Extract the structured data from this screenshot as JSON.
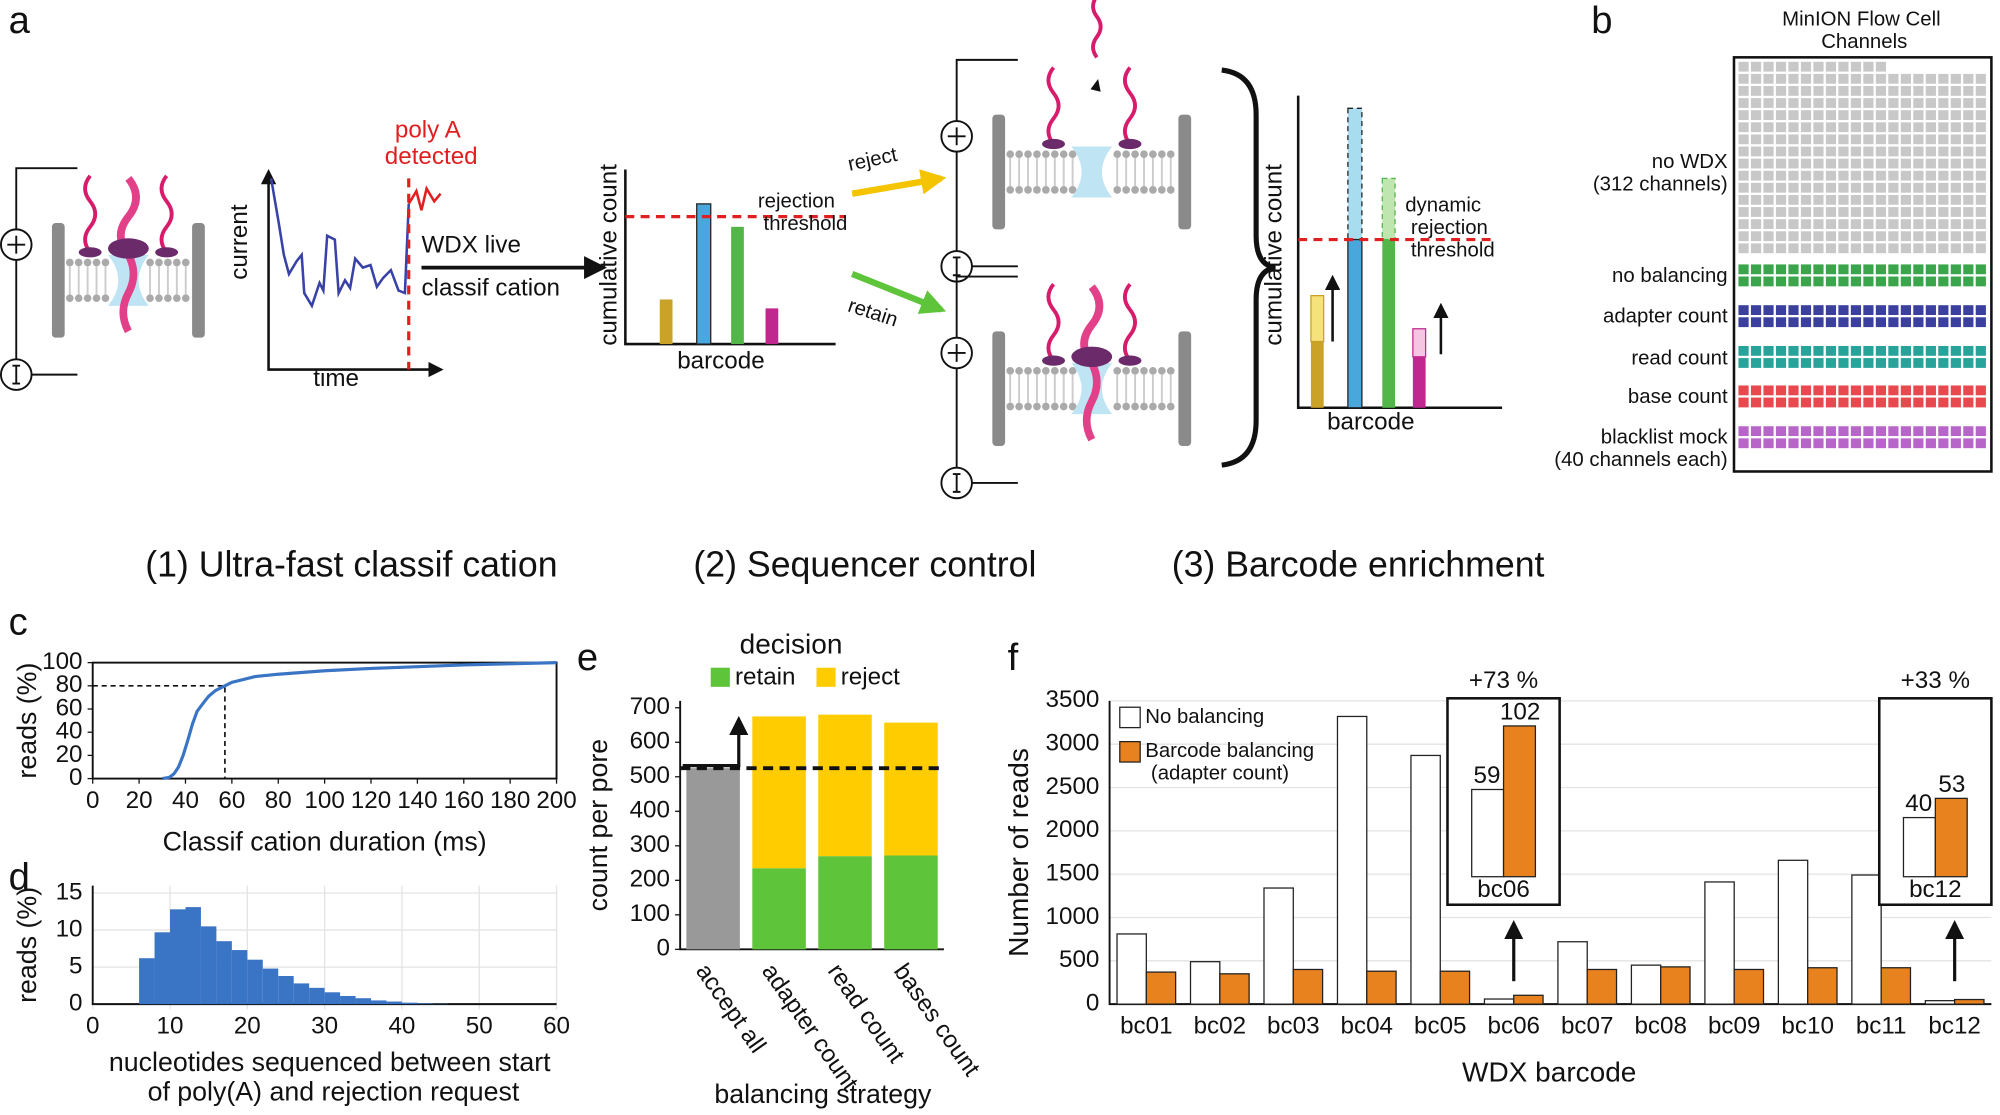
{
  "panels": {
    "a": "a",
    "b": "b",
    "c": "c",
    "d": "d",
    "e": "e",
    "f": "f"
  },
  "diagram": {
    "poly_a": "poly A\ndetected",
    "current": "current",
    "time": "time",
    "wdx": "WDX live",
    "classification": "classif cation",
    "cumulative_count": "cumulative count",
    "barcode": "barcode",
    "rejection_threshold": "rejection\nthreshold",
    "reject": "reject",
    "retain": "retain",
    "cumulative_count_2": "cumulative count",
    "barcode_2": "barcode",
    "dynamic_threshold": "dynamic\nrejection\nthreshold",
    "steps": [
      "(1) Ultra-fast classif cation",
      "(2) Sequencer control",
      "(3) Barcode enrichment"
    ]
  },
  "flow_cell": {
    "title": "MinION Flow Cell\nChannels",
    "groups": [
      {
        "label": "no WDX\n(312 channels)",
        "color": "#c8c8c8"
      },
      {
        "label": "no balancing",
        "color": "#3aa54a"
      },
      {
        "label": "adapter count",
        "color": "#3b3f9e"
      },
      {
        "label": "read count",
        "color": "#27a39a"
      },
      {
        "label": "base count",
        "color": "#e8494f"
      },
      {
        "label": "blacklist mock\n(40 channels each)",
        "color": "#b865c9"
      }
    ]
  },
  "chart_data": [
    {
      "type": "line",
      "ylabel": "reads (%)",
      "xlabel": "Classif cation duration (ms)",
      "xlim": [
        0,
        200
      ],
      "ylim": [
        0,
        100
      ],
      "xticks": [
        0,
        20,
        40,
        60,
        80,
        100,
        120,
        140,
        160,
        180,
        200
      ],
      "yticks": [
        0,
        20,
        40,
        60,
        80,
        100
      ],
      "series": [
        {
          "color": "#3a74c4",
          "x": [
            30,
            33,
            35,
            37,
            39,
            41,
            43,
            45,
            48,
            50,
            53,
            57,
            60,
            70,
            80,
            100,
            120,
            140,
            160,
            180,
            200
          ],
          "values": [
            0,
            1,
            4,
            10,
            20,
            33,
            47,
            58,
            66,
            71,
            76,
            80,
            83,
            88,
            90,
            93,
            95,
            96.5,
            98,
            99,
            100
          ]
        }
      ],
      "reference_point": {
        "x": 57,
        "y": 80
      }
    },
    {
      "type": "histogram",
      "ylabel": "reads (%)",
      "xlabel": "nucleotides sequenced between start\nof poly(A) and rejection request",
      "color": "#3a74c4",
      "bins": [
        6,
        8,
        10,
        12,
        14,
        16,
        18,
        20,
        22,
        24,
        26,
        28,
        30,
        32,
        34,
        36,
        38,
        40,
        42,
        44,
        46
      ],
      "values": [
        6.2,
        9.7,
        12.8,
        13.1,
        10.5,
        8.5,
        7.3,
        6.0,
        4.8,
        3.8,
        2.8,
        2.2,
        1.6,
        1.1,
        0.8,
        0.5,
        0.35,
        0.2,
        0.1,
        0.05
      ],
      "xlim": [
        0,
        60
      ],
      "ylim": [
        0,
        16
      ],
      "xticks": [
        0,
        10,
        20,
        30,
        40,
        50,
        60
      ],
      "yticks": [
        0,
        5,
        10,
        15
      ],
      "grid": true
    },
    {
      "type": "stacked_bar",
      "title": "decision",
      "ylabel": "count per pore",
      "xlabel": "balancing strategy",
      "categories": [
        "accept all",
        "adapter count",
        "read count",
        "bases count"
      ],
      "series": [
        {
          "color": "#999999",
          "values": [
            525,
            null,
            null,
            null
          ]
        },
        {
          "name": "retain",
          "color": "#5ec43a",
          "values": [
            null,
            235,
            270,
            272
          ]
        },
        {
          "name": "reject",
          "color": "#ffcc00",
          "values": [
            null,
            440,
            410,
            385
          ]
        }
      ],
      "ylim": [
        0,
        720
      ],
      "yticks": [
        0,
        100,
        200,
        300,
        400,
        500,
        600,
        700
      ],
      "threshold": 525
    },
    {
      "type": "grouped_bar",
      "ylabel": "Number of reads",
      "xlabel": "WDX barcode",
      "categories": [
        "bc01",
        "bc02",
        "bc03",
        "bc04",
        "bc05",
        "bc06",
        "bc07",
        "bc08",
        "bc09",
        "bc10",
        "bc11",
        "bc12"
      ],
      "series": [
        {
          "name": "No balancing",
          "color": "#ffffff",
          "values": [
            810,
            490,
            1340,
            3320,
            2870,
            59,
            720,
            450,
            1410,
            1660,
            1490,
            40
          ]
        },
        {
          "name": "Barcode balancing\n(adapter count)",
          "color": "#e8821e",
          "values": [
            370,
            350,
            400,
            380,
            380,
            102,
            400,
            430,
            400,
            420,
            420,
            53
          ]
        }
      ],
      "ylim": [
        0,
        3500
      ],
      "yticks": [
        0,
        500,
        1000,
        1500,
        2000,
        2500,
        3000,
        3500
      ],
      "grid": true,
      "insets": [
        {
          "category": "bc06",
          "label": "+73 %"
        },
        {
          "category": "bc12",
          "label": "+33 %"
        }
      ]
    }
  ]
}
